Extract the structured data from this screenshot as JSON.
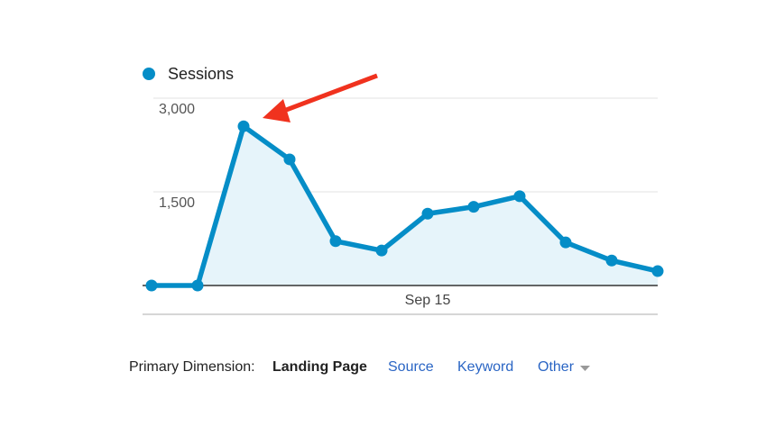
{
  "chart_data": {
    "type": "line",
    "categories": [
      null,
      null,
      null,
      null,
      null,
      null,
      "Sep 15",
      null,
      null,
      null,
      null,
      null
    ],
    "series": [
      {
        "name": "Sessions",
        "color": "#058dc7",
        "fill_color": "#e6f4fa",
        "values": [
          0,
          0,
          2550,
          2020,
          710,
          560,
          1150,
          1260,
          1430,
          690,
          400,
          230
        ]
      }
    ],
    "ylim": [
      0,
      3000
    ],
    "yticks": [
      {
        "value": 1500,
        "label": "1,500"
      },
      {
        "value": 3000,
        "label": "3,000"
      }
    ],
    "grid": true,
    "area": true
  },
  "primary_dimension": {
    "label": "Primary Dimension:",
    "selected": "Landing Page",
    "options": [
      "Source",
      "Keyword",
      "Other"
    ]
  }
}
